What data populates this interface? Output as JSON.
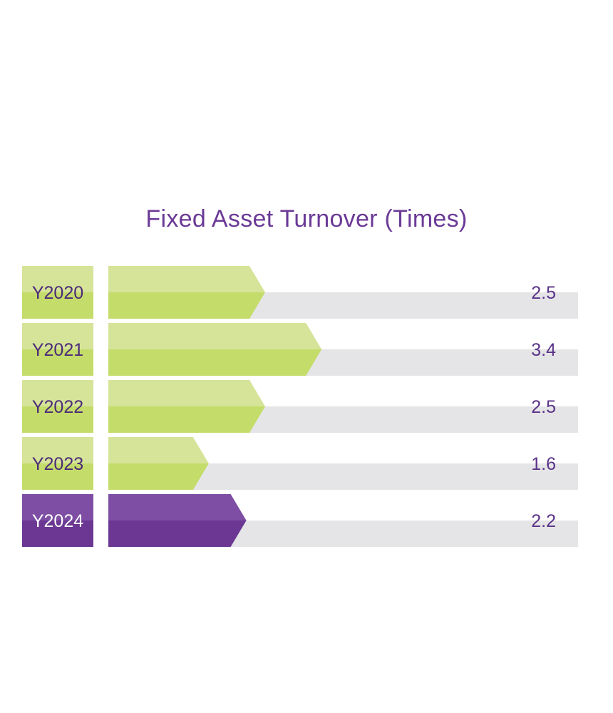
{
  "chart_data": {
    "type": "bar",
    "title": "Fixed Asset Turnover (Times)",
    "categories": [
      "Y2020",
      "Y2021",
      "Y2022",
      "Y2023",
      "Y2024"
    ],
    "values": [
      2.5,
      3.4,
      2.5,
      1.6,
      2.2
    ],
    "value_labels": [
      "2.5",
      "3.4",
      "2.5",
      "1.6",
      "2.2"
    ],
    "highlight_index": 4,
    "colors": {
      "title": "#6b3a96",
      "bar_green_light": "#d5e498",
      "bar_green": "#c4dc6a",
      "bar_purple_light": "#7d4ea3",
      "bar_purple": "#6b3792",
      "track": "#e5e5e7",
      "label_text": "#4b2a78",
      "value_text": "#5a3288"
    }
  }
}
